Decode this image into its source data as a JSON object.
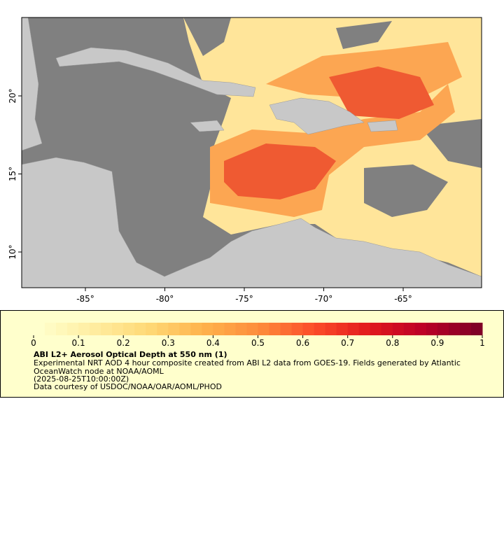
{
  "map": {
    "x_tick_labels": [
      "-85°",
      "-80°",
      "-75°",
      "-70°",
      "-65°"
    ],
    "y_tick_labels": [
      "20°",
      "15°",
      "10°"
    ]
  },
  "legend": {
    "tick_labels": [
      "0",
      "0.1",
      "0.2",
      "0.3",
      "0.4",
      "0.5",
      "0.6",
      "0.7",
      "0.8",
      "0.9",
      "1"
    ],
    "title": "ABI L2+ Aerosol Optical Depth at 550 nm (1)",
    "lines": [
      "Experimental NRT AOD 4 hour composite created from ABI L2 data from GOES-19. Fields generated by Atlantic OceanWatch node at NOAA/AOML",
      "(2025-08-25T10:00:00Z)",
      "Data courtesy of USDOC/NOAA/OAR/AOML/PHOD"
    ]
  }
}
